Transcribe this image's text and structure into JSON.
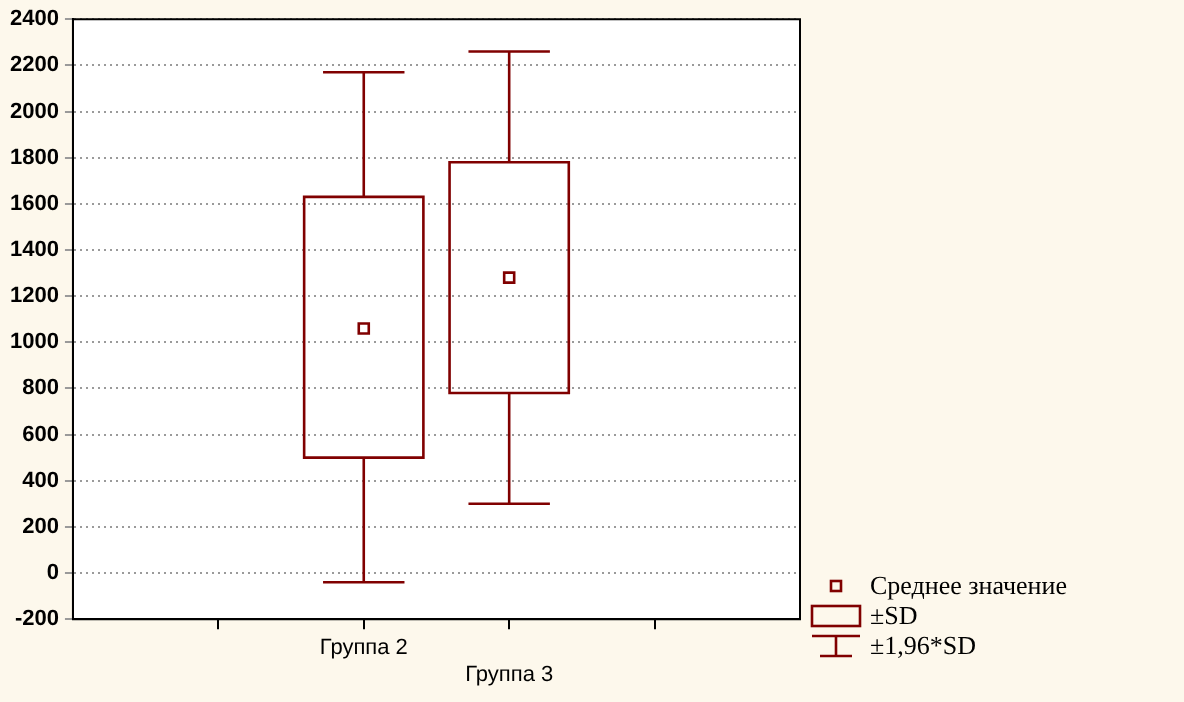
{
  "chart_data": {
    "type": "box",
    "categories": [
      null,
      "Группа 2",
      "Группа 3",
      null
    ],
    "boxes": [
      null,
      {
        "low": -40,
        "q1": 500,
        "mean": 1060,
        "q3": 1630,
        "high": 2170
      },
      {
        "low": 300,
        "q1": 780,
        "mean": 1280,
        "q3": 1780,
        "high": 2260
      },
      null
    ],
    "color": "#800000",
    "ylim": [
      -200,
      2400
    ],
    "yticks": [
      -200,
      0,
      200,
      400,
      600,
      800,
      1000,
      1200,
      1400,
      1600,
      1800,
      2000,
      2200,
      2400
    ],
    "grid": "y",
    "annotations": [
      "Среднее значение",
      "±SD",
      "±1,96*SD"
    ]
  }
}
